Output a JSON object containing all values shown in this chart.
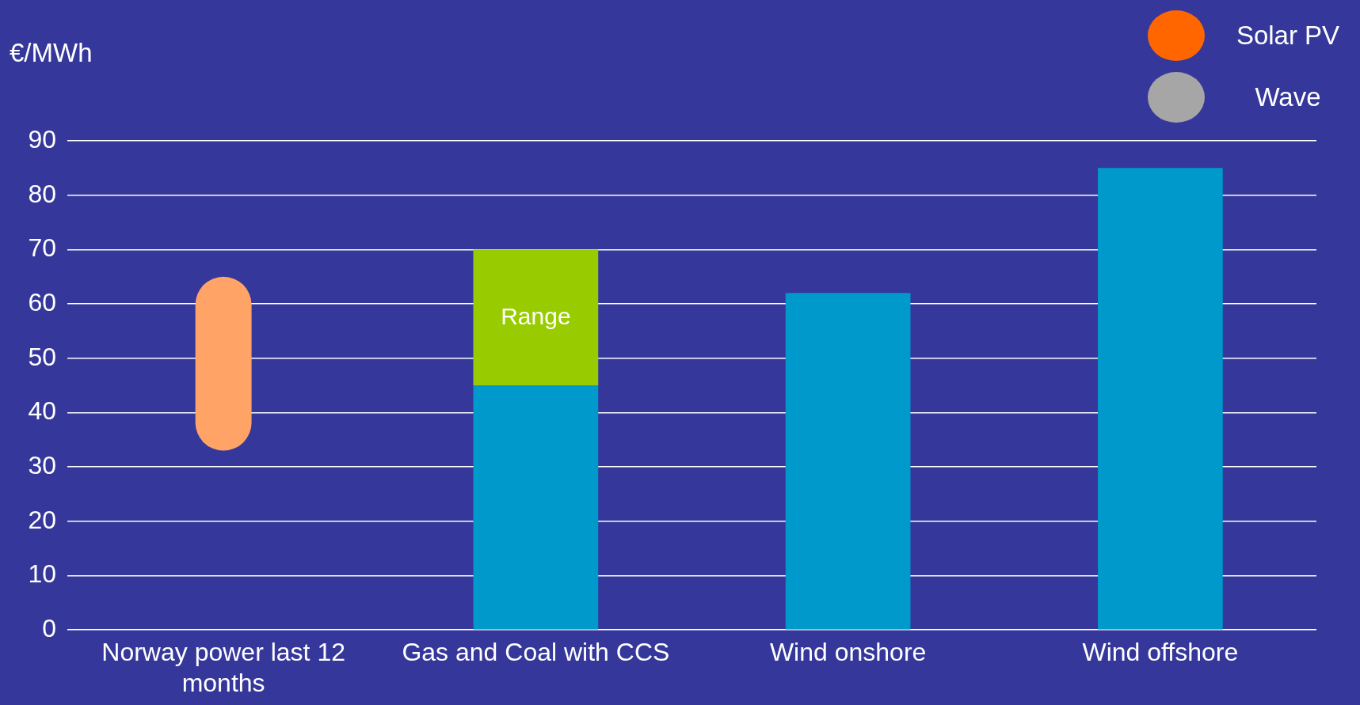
{
  "chart_data": {
    "type": "bar",
    "ylabel": "€/MWh",
    "categories": [
      "Norway power last 12 months",
      "Gas and Coal with CCS",
      "Wind onshore",
      "Wind offshore"
    ],
    "series": [
      {
        "color": "#ffa366",
        "values": [
          32,
          null,
          null,
          null
        ],
        "base": [
          33,
          null,
          null,
          null
        ]
      },
      {
        "color": "#0099cc",
        "values": [
          null,
          45,
          62,
          85
        ]
      },
      {
        "name": "Range",
        "color": "#99cc00",
        "values": [
          null,
          25,
          null,
          null
        ]
      },
      {
        "name": "Solar PV",
        "color": "#ff6600",
        "values": [
          null,
          null,
          null,
          null
        ]
      },
      {
        "name": "Wave",
        "color": "#a6a6a6",
        "values": [
          null,
          null,
          null,
          null
        ]
      }
    ],
    "stacked": true,
    "ylim": [
      0,
      90
    ],
    "yticks": [
      0,
      10,
      20,
      30,
      40,
      50,
      60,
      70,
      80,
      90
    ],
    "grid": "y",
    "legend": "top right"
  }
}
